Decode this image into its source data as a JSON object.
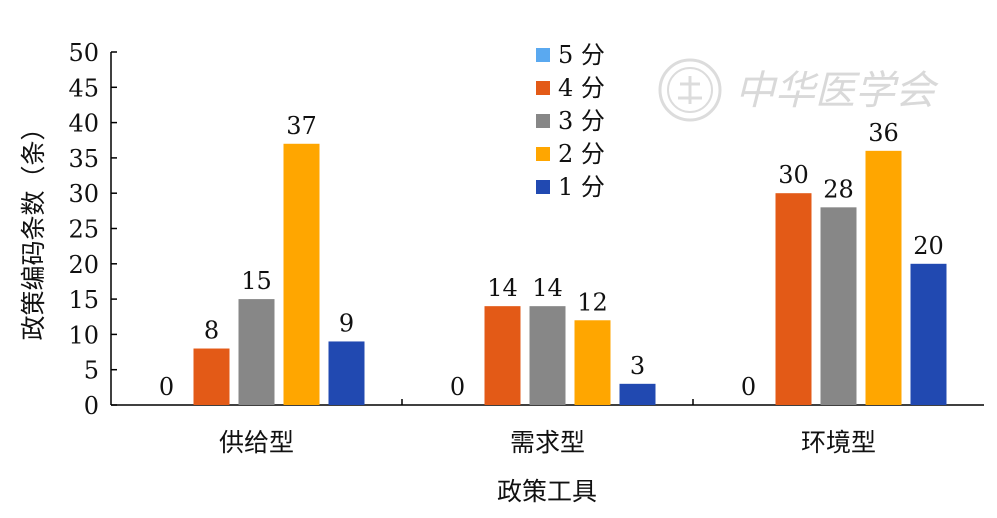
{
  "chart_data": {
    "type": "bar",
    "categories": [
      "供给型",
      "需求型",
      "环境型"
    ],
    "series": [
      {
        "name": "5 分",
        "color": "#5aa9f0",
        "values": [
          0,
          0,
          0
        ]
      },
      {
        "name": "4 分",
        "color": "#e35a17",
        "values": [
          8,
          14,
          30
        ]
      },
      {
        "name": "3 分",
        "color": "#878787",
        "values": [
          15,
          14,
          28
        ]
      },
      {
        "name": "2 分",
        "color": "#ffa600",
        "values": [
          37,
          12,
          36
        ]
      },
      {
        "name": "1 分",
        "color": "#2149b1",
        "values": [
          9,
          3,
          20
        ]
      }
    ],
    "yticks": [
      0,
      5,
      10,
      15,
      20,
      25,
      30,
      35,
      40,
      45,
      50
    ],
    "ylim": [
      0,
      50
    ],
    "xlabel": "政策工具",
    "ylabel": "政策编码条数（条）",
    "legend_position": "top-center",
    "grid": false
  },
  "watermark": {
    "text": "中华医学会",
    "icon": "society-seal-icon",
    "color": "#d9d9d9"
  }
}
